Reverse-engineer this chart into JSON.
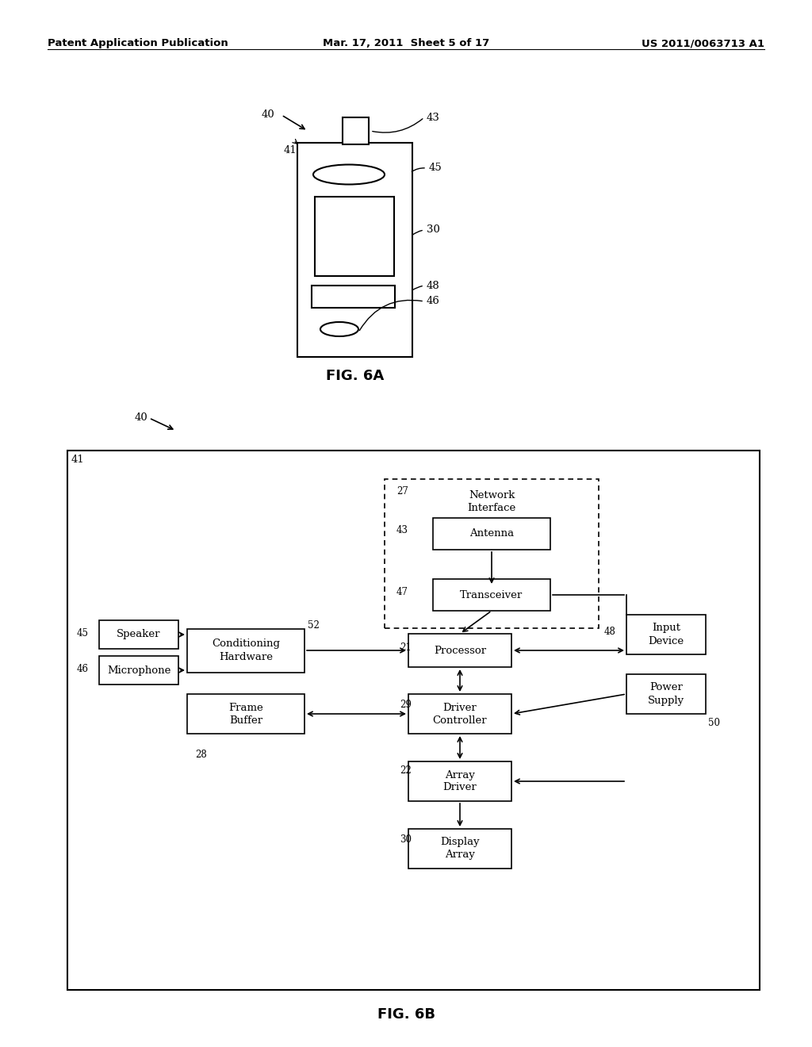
{
  "header_left": "Patent Application Publication",
  "header_center": "Mar. 17, 2011  Sheet 5 of 17",
  "header_right": "US 2011/0063713 A1",
  "fig6a_label": "FIG. 6A",
  "fig6b_label": "FIG. 6B",
  "bg_color": "#ffffff",
  "line_color": "#000000"
}
